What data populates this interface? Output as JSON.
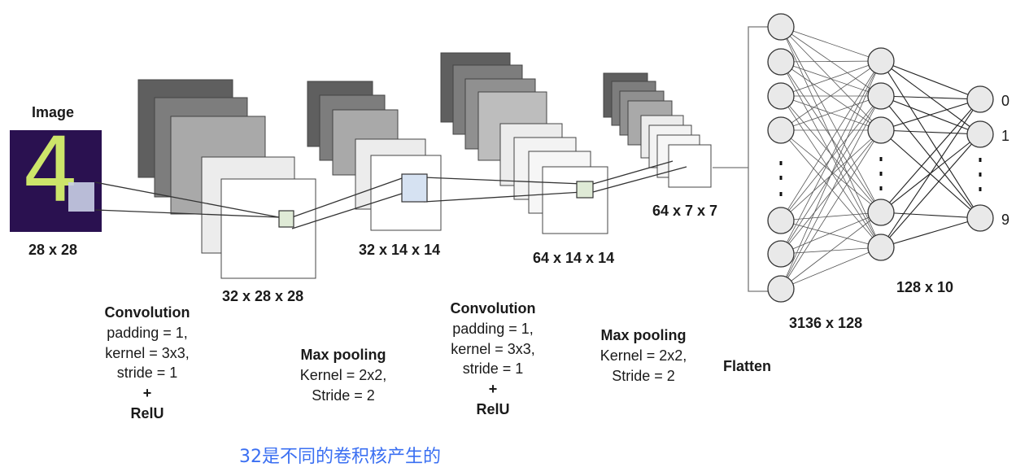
{
  "input": {
    "caption": "Image",
    "size_label": "28 x 28",
    "digit": "4"
  },
  "shape_labels": {
    "conv1": "32 x 28 x 28",
    "pool1": "32 x 14 x 14",
    "conv2": "64 x 14 x 14",
    "pool2": "64 x 7 x 7",
    "fc1": "3136 x 128",
    "fc2": "128 x 10"
  },
  "operations": {
    "conv1": {
      "title": "Convolution",
      "lines": [
        "padding = 1,",
        "kernel = 3x3,",
        "stride = 1"
      ],
      "plus": "+",
      "activation": "RelU"
    },
    "pool1": {
      "title": "Max pooling",
      "lines": [
        "Kernel = 2x2,",
        "Stride = 2"
      ]
    },
    "conv2": {
      "title": "Convolution",
      "lines": [
        "padding = 1,",
        "kernel = 3x3,",
        "stride = 1"
      ],
      "plus": "+",
      "activation": "RelU"
    },
    "pool2": {
      "title": "Max pooling",
      "lines": [
        "Kernel = 2x2,",
        "Stride = 2"
      ]
    },
    "flatten": {
      "title": "Flatten"
    }
  },
  "outputs": [
    "0",
    "1",
    "9"
  ],
  "ellipsis": ":",
  "note": "32是不同的卷积核产生的",
  "colors": {
    "image_bg": "#2a1150",
    "digit": "#cde56a",
    "kernel_green": "#dfead6",
    "kernel_blue": "#d6e2f2",
    "note_blue": "#3a6ff2",
    "dark_map": "#5f5f5f"
  }
}
